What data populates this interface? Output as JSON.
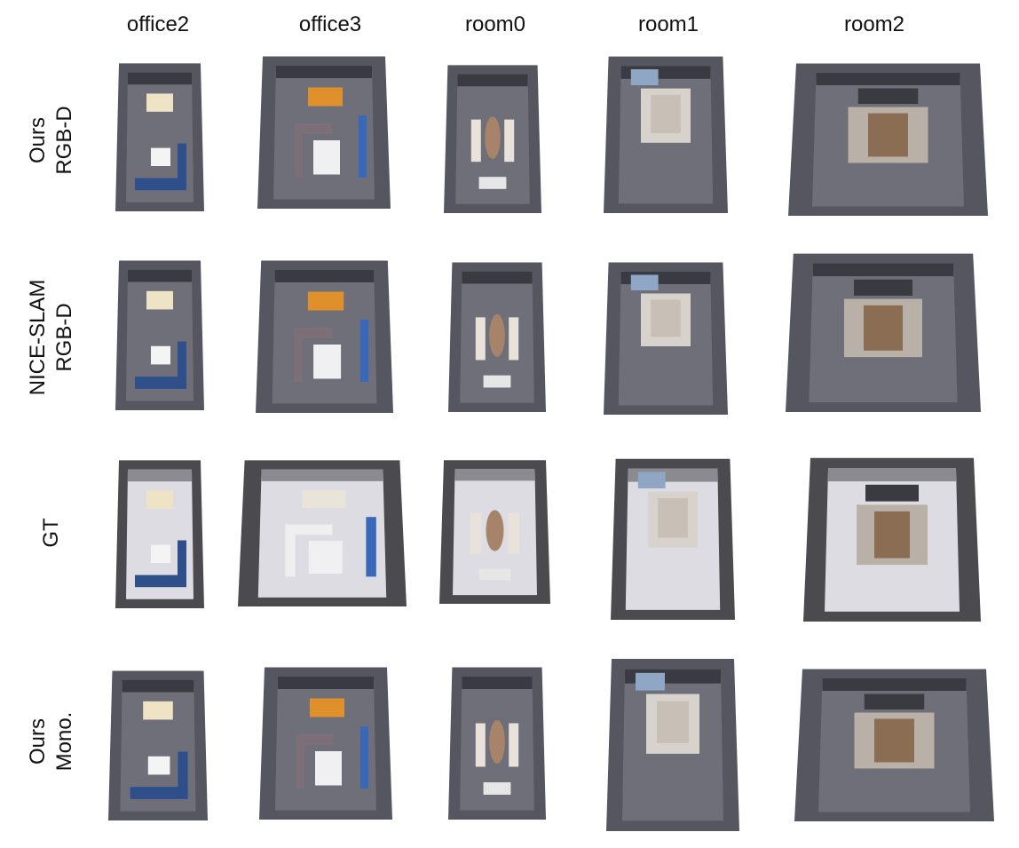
{
  "columns": [
    "office2",
    "office3",
    "room0",
    "room1",
    "room2"
  ],
  "rows": [
    {
      "line1": "Ours",
      "line2": "RGB-D",
      "kind": "recon"
    },
    {
      "line1": "NICE-SLAM",
      "line2": "RGB-D",
      "kind": "recon"
    },
    {
      "line1": "GT",
      "line2": "",
      "kind": "gt"
    },
    {
      "line1": "Ours",
      "line2": "Mono.",
      "kind": "recon"
    }
  ],
  "colors": {
    "recon_floor": "#6f6f7a",
    "recon_wall": "#55565f",
    "gt_floor": "#dcdce2",
    "gt_wall": "#4a4a4f",
    "accent_orange": "#e0902a",
    "accent_blue": "#2f4f8a"
  }
}
